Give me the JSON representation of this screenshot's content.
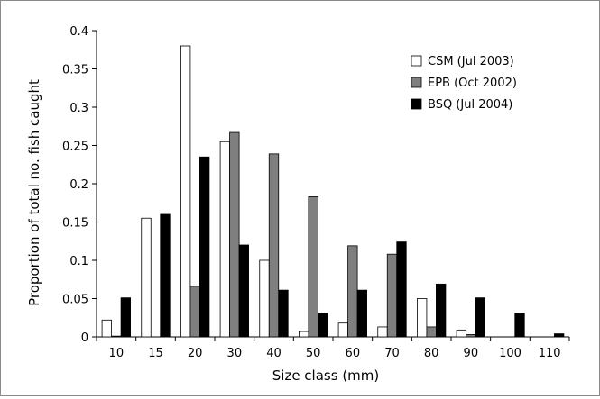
{
  "chart_data": {
    "type": "bar",
    "title": "",
    "xlabel": "Size class (mm)",
    "ylabel": "Proportion of total no. fish caught",
    "categories": [
      "10",
      "15",
      "20",
      "30",
      "40",
      "50",
      "60",
      "70",
      "80",
      "90",
      "100",
      "110"
    ],
    "ylim": [
      0,
      0.4
    ],
    "yticks": [
      0,
      0.05,
      0.1,
      0.15,
      0.2,
      0.25,
      0.3,
      0.35,
      0.4
    ],
    "ytick_labels": [
      "0",
      "0.05",
      "0.1",
      "0.15",
      "0.2",
      "0.25",
      "0.3",
      "0.35",
      "0.4"
    ],
    "grid": false,
    "legend_position": "top-right",
    "series": [
      {
        "name": "CSM (Jul 2003)",
        "color": "#ffffff",
        "values": [
          0.022,
          0.155,
          0.38,
          0.255,
          0.1,
          0.007,
          0.018,
          0.013,
          0.05,
          0.009,
          0,
          0
        ]
      },
      {
        "name": "EPB (Oct 2002)",
        "color": "#7f7f7f",
        "values": [
          0.001,
          0,
          0.066,
          0.267,
          0.239,
          0.183,
          0.119,
          0.108,
          0.013,
          0.003,
          0,
          0
        ]
      },
      {
        "name": "BSQ (Jul 2004)",
        "color": "#000000",
        "values": [
          0.051,
          0.16,
          0.235,
          0.12,
          0.061,
          0.031,
          0.061,
          0.124,
          0.069,
          0.051,
          0.031,
          0.004
        ]
      }
    ]
  }
}
